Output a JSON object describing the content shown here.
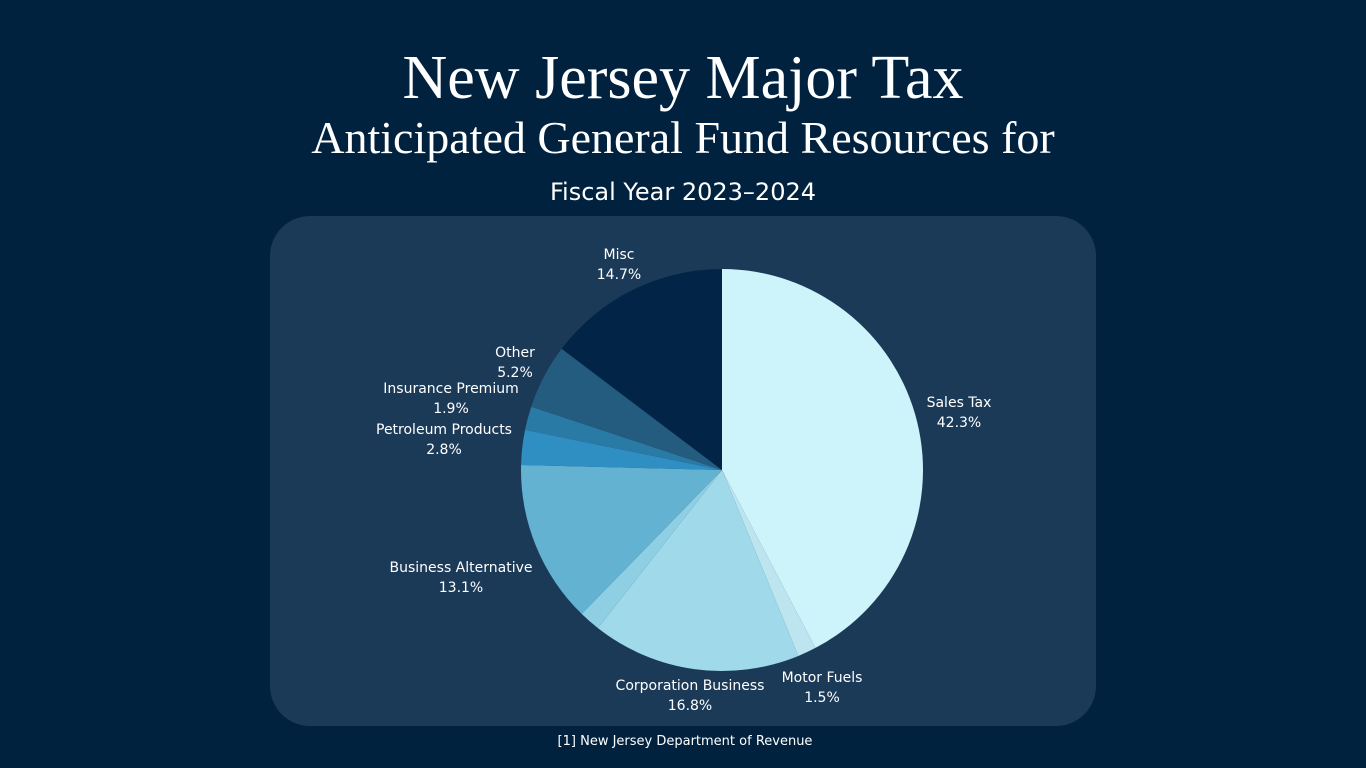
{
  "chart_data": {
    "type": "pie",
    "title": "New Jersey Major Tax",
    "subtitle": "Anticipated General Fund Resources for",
    "period": "Fiscal Year 2023–2024",
    "source": "[1] New Jersey Department of Revenue",
    "categories": [
      "Sales Tax",
      "Motor Fuels",
      "Corporation Business",
      null,
      "Business Alternative",
      "Petroleum Products",
      "Insurance Premium",
      "Other",
      "Misc"
    ],
    "values": [
      42.3,
      1.5,
      16.8,
      1.7,
      13.1,
      2.8,
      1.9,
      5.2,
      14.7
    ],
    "value_labels": [
      "42.3%",
      "1.5%",
      "16.8%",
      null,
      "13.1%",
      "2.8%",
      "1.9%",
      "5.2%",
      "14.7%"
    ],
    "colors": [
      "#cdf3fb",
      "#bde5ef",
      "#a0d9ea",
      "#8ecfe4",
      "#63b2d2",
      "#2f8fc2",
      "#2a7aa6",
      "#245c80",
      "#022447"
    ]
  }
}
